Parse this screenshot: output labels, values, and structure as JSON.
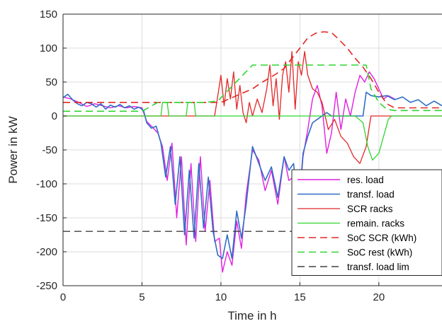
{
  "chart_data": {
    "type": "line",
    "title": "",
    "xlabel": "Time in h",
    "ylabel": "Power in kW",
    "xlim": [
      0,
      24
    ],
    "ylim": [
      -250,
      150
    ],
    "xticks": [
      0,
      5,
      10,
      15,
      20
    ],
    "yticks": [
      150,
      100,
      50,
      0,
      -50,
      -100,
      -150,
      -200,
      -250
    ],
    "grid": true,
    "legend_position": "bottom-right",
    "series": [
      {
        "name": "res. load",
        "color": "#e020e0",
        "style": "solid",
        "width": 1.4,
        "points": [
          [
            0,
            28
          ],
          [
            0.5,
            25
          ],
          [
            1,
            20
          ],
          [
            1.5,
            14
          ],
          [
            2,
            18
          ],
          [
            2.5,
            15
          ],
          [
            3,
            12
          ],
          [
            3.5,
            15
          ],
          [
            4,
            12
          ],
          [
            4.5,
            14
          ],
          [
            5,
            12
          ],
          [
            5.3,
            -8
          ],
          [
            5.6,
            -15
          ],
          [
            6,
            -25
          ],
          [
            6.3,
            -45
          ],
          [
            6.6,
            -95
          ],
          [
            6.9,
            -40
          ],
          [
            7.2,
            -150
          ],
          [
            7.5,
            -60
          ],
          [
            7.8,
            -190
          ],
          [
            8.1,
            -70
          ],
          [
            8.4,
            -185
          ],
          [
            8.7,
            -60
          ],
          [
            9,
            -170
          ],
          [
            9.3,
            -95
          ],
          [
            9.6,
            -185
          ],
          [
            9.9,
            -180
          ],
          [
            10.1,
            -230
          ],
          [
            10.4,
            -200
          ],
          [
            10.7,
            -220
          ],
          [
            11,
            -155
          ],
          [
            11.3,
            -195
          ],
          [
            11.6,
            -115
          ],
          [
            12,
            -50
          ],
          [
            12.4,
            -65
          ],
          [
            12.8,
            -110
          ],
          [
            13.2,
            -80
          ],
          [
            13.6,
            -130
          ],
          [
            14,
            -60
          ],
          [
            14.3,
            -95
          ],
          [
            14.6,
            -90
          ],
          [
            14.9,
            -150
          ],
          [
            15.2,
            -60
          ],
          [
            15.5,
            -20
          ],
          [
            15.8,
            25
          ],
          [
            16.1,
            45
          ],
          [
            16.4,
            15
          ],
          [
            16.7,
            -55
          ],
          [
            17,
            -25
          ],
          [
            17.3,
            35
          ],
          [
            17.6,
            -20
          ],
          [
            17.9,
            25
          ],
          [
            18.2,
            0
          ],
          [
            18.5,
            35
          ],
          [
            18.8,
            60
          ],
          [
            19.1,
            50
          ],
          [
            19.4,
            65
          ],
          [
            19.7,
            55
          ],
          [
            20,
            40
          ],
          [
            20.3,
            25
          ],
          [
            20.6,
            30
          ],
          [
            21,
            25
          ]
        ]
      },
      {
        "name": "transf. load",
        "color": "#2e6fc4",
        "style": "solid",
        "width": 1.6,
        "points": [
          [
            0,
            27
          ],
          [
            0.3,
            32
          ],
          [
            0.6,
            24
          ],
          [
            0.9,
            18
          ],
          [
            1.2,
            15
          ],
          [
            1.5,
            20
          ],
          [
            1.8,
            18
          ],
          [
            2.1,
            13
          ],
          [
            2.4,
            18
          ],
          [
            2.7,
            10
          ],
          [
            3,
            16
          ],
          [
            3.3,
            13
          ],
          [
            3.6,
            17
          ],
          [
            3.9,
            12
          ],
          [
            4.2,
            15
          ],
          [
            4.5,
            10
          ],
          [
            4.8,
            13
          ],
          [
            5.1,
            8
          ],
          [
            5.3,
            -10
          ],
          [
            5.6,
            -18
          ],
          [
            5.9,
            -15
          ],
          [
            6.2,
            -40
          ],
          [
            6.5,
            -90
          ],
          [
            6.8,
            -45
          ],
          [
            7.1,
            -130
          ],
          [
            7.4,
            -60
          ],
          [
            7.7,
            -175
          ],
          [
            8,
            -80
          ],
          [
            8.3,
            -180
          ],
          [
            8.6,
            -70
          ],
          [
            8.9,
            -165
          ],
          [
            9.2,
            -90
          ],
          [
            9.5,
            -170
          ],
          [
            9.8,
            -205
          ],
          [
            10.1,
            -210
          ],
          [
            10.4,
            -175
          ],
          [
            10.7,
            -210
          ],
          [
            11,
            -140
          ],
          [
            11.3,
            -180
          ],
          [
            11.6,
            -130
          ],
          [
            12,
            -45
          ],
          [
            12.4,
            -70
          ],
          [
            12.8,
            -95
          ],
          [
            13.2,
            -75
          ],
          [
            13.6,
            -120
          ],
          [
            14,
            -60
          ],
          [
            14.3,
            -80
          ],
          [
            14.6,
            -70
          ],
          [
            14.9,
            -145
          ],
          [
            15.2,
            -55
          ],
          [
            15.5,
            -30
          ],
          [
            15.8,
            -10
          ],
          [
            16.1,
            -5
          ],
          [
            16.4,
            0
          ],
          [
            16.7,
            5
          ],
          [
            17,
            0
          ],
          [
            17.5,
            0
          ],
          [
            18,
            0
          ],
          [
            18.5,
            0
          ],
          [
            19,
            0
          ],
          [
            19.2,
            35
          ],
          [
            19.5,
            30
          ],
          [
            20,
            28
          ],
          [
            20.5,
            30
          ],
          [
            21,
            24
          ],
          [
            21.5,
            28
          ],
          [
            22,
            20
          ],
          [
            22.5,
            24
          ],
          [
            23,
            15
          ],
          [
            23.5,
            22
          ],
          [
            24,
            15
          ]
        ]
      },
      {
        "name": "SCR racks",
        "color": "#e32626",
        "style": "solid",
        "width": 1.3,
        "points": [
          [
            0,
            0
          ],
          [
            9.6,
            0
          ],
          [
            9.8,
            30
          ],
          [
            10,
            60
          ],
          [
            10.2,
            15
          ],
          [
            10.4,
            55
          ],
          [
            10.6,
            25
          ],
          [
            10.8,
            65
          ],
          [
            11,
            10
          ],
          [
            11.2,
            45
          ],
          [
            11.4,
            5
          ],
          [
            11.6,
            -10
          ],
          [
            11.8,
            20
          ],
          [
            12,
            0
          ],
          [
            12.3,
            25
          ],
          [
            12.6,
            5
          ],
          [
            12.9,
            40
          ],
          [
            13.1,
            75
          ],
          [
            13.3,
            15
          ],
          [
            13.5,
            55
          ],
          [
            13.7,
            -5
          ],
          [
            13.9,
            60
          ],
          [
            14.1,
            80
          ],
          [
            14.3,
            35
          ],
          [
            14.5,
            95
          ],
          [
            14.7,
            10
          ],
          [
            14.9,
            80
          ],
          [
            15.1,
            60
          ],
          [
            15.3,
            95
          ],
          [
            15.5,
            60
          ],
          [
            15.8,
            40
          ],
          [
            16.1,
            35
          ],
          [
            16.4,
            20
          ],
          [
            16.8,
            -20
          ],
          [
            17.2,
            -5
          ],
          [
            17.6,
            -30
          ],
          [
            18,
            -40
          ],
          [
            18.4,
            -60
          ],
          [
            18.8,
            -70
          ],
          [
            19.2,
            -45
          ],
          [
            19.5,
            0
          ],
          [
            20,
            0
          ],
          [
            24,
            0
          ]
        ]
      },
      {
        "name": "remain. racks",
        "color": "#2ed62e",
        "style": "solid",
        "width": 1.3,
        "points": [
          [
            0,
            0
          ],
          [
            6.2,
            0
          ],
          [
            6.3,
            20
          ],
          [
            6.6,
            20
          ],
          [
            6.7,
            0
          ],
          [
            7.8,
            0
          ],
          [
            7.9,
            20
          ],
          [
            8.3,
            20
          ],
          [
            8.4,
            0
          ],
          [
            9.8,
            0
          ],
          [
            17.2,
            0
          ],
          [
            17.5,
            0
          ],
          [
            18,
            0
          ],
          [
            18.5,
            0
          ],
          [
            19,
            -10
          ],
          [
            19.3,
            -45
          ],
          [
            19.6,
            -65
          ],
          [
            20,
            -55
          ],
          [
            20.3,
            -30
          ],
          [
            20.6,
            -5
          ],
          [
            20.8,
            0
          ],
          [
            24,
            0
          ]
        ]
      },
      {
        "name": "SoC SCR (kWh)",
        "color": "#e32626",
        "style": "dashed",
        "width": 1.6,
        "points": [
          [
            0,
            20
          ],
          [
            9.6,
            20
          ],
          [
            10,
            20
          ],
          [
            10.5,
            25
          ],
          [
            11,
            30
          ],
          [
            11.5,
            35
          ],
          [
            12,
            40
          ],
          [
            12.5,
            48
          ],
          [
            13,
            55
          ],
          [
            13.5,
            62
          ],
          [
            14,
            70
          ],
          [
            14.5,
            85
          ],
          [
            15,
            100
          ],
          [
            15.5,
            115
          ],
          [
            16,
            122
          ],
          [
            16.5,
            124
          ],
          [
            17,
            123
          ],
          [
            17.5,
            112
          ],
          [
            18,
            100
          ],
          [
            18.5,
            85
          ],
          [
            19,
            72
          ],
          [
            19.5,
            55
          ],
          [
            20,
            35
          ],
          [
            20.5,
            18
          ],
          [
            21,
            12
          ],
          [
            24,
            12
          ]
        ]
      },
      {
        "name": "SoC rest (kWh)",
        "color": "#2ed62e",
        "style": "dashed",
        "width": 1.6,
        "points": [
          [
            0,
            7
          ],
          [
            5,
            7
          ],
          [
            6,
            20
          ],
          [
            9,
            20
          ],
          [
            9.8,
            22
          ],
          [
            12,
            75
          ],
          [
            19.2,
            75
          ],
          [
            19.5,
            40
          ],
          [
            20,
            20
          ],
          [
            20.5,
            10
          ],
          [
            21,
            8
          ],
          [
            24,
            8
          ]
        ]
      },
      {
        "name": "transf. load lim",
        "color": "#404040",
        "style": "dashed",
        "width": 1.4,
        "points": [
          [
            0,
            -170
          ],
          [
            24,
            -170
          ]
        ]
      }
    ]
  }
}
